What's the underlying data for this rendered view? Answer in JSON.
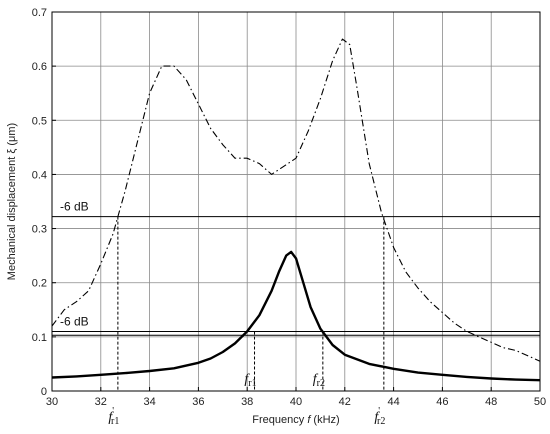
{
  "chart_data": {
    "type": "line",
    "title": "",
    "xlabel_parts": [
      "Frequency ",
      "f",
      " (kHz)"
    ],
    "ylabel": "Mechanical displacement ξ (μm)",
    "xlim": [
      30,
      50
    ],
    "ylim": [
      0,
      0.7
    ],
    "xticks": [
      30,
      32,
      34,
      36,
      38,
      40,
      42,
      44,
      46,
      48,
      50
    ],
    "yticks": [
      0,
      0.1,
      0.2,
      0.3,
      0.4,
      0.5,
      0.6,
      0.7
    ],
    "ytick_labels": [
      "0",
      "0.1",
      "0.2",
      "0.3",
      "0.4",
      "0.5",
      "0.6",
      "0.7"
    ],
    "grid": true,
    "series": [
      {
        "style": "dash-dot",
        "x": [
          30,
          30.5,
          31,
          31.5,
          32,
          32.5,
          33,
          33.5,
          34,
          34.5,
          35,
          35.5,
          36,
          36.5,
          37,
          37.5,
          38,
          38.5,
          39,
          39.5,
          40,
          40.5,
          41,
          41.5,
          41.9,
          42.2,
          42.5,
          43,
          43.5,
          44,
          44.5,
          45,
          45.5,
          46,
          46.5,
          47,
          47.5,
          48,
          48.5,
          49,
          49.5,
          50
        ],
        "y": [
          0.12,
          0.15,
          0.165,
          0.185,
          0.235,
          0.29,
          0.37,
          0.46,
          0.55,
          0.6,
          0.6,
          0.575,
          0.53,
          0.485,
          0.455,
          0.43,
          0.43,
          0.42,
          0.4,
          0.415,
          0.43,
          0.48,
          0.54,
          0.61,
          0.65,
          0.64,
          0.56,
          0.42,
          0.33,
          0.265,
          0.22,
          0.19,
          0.165,
          0.145,
          0.125,
          0.11,
          0.1,
          0.09,
          0.08,
          0.075,
          0.065,
          0.055
        ]
      },
      {
        "style": "solid",
        "x": [
          30,
          31,
          32,
          33,
          34,
          35,
          36,
          36.5,
          37,
          37.5,
          38,
          38.5,
          39,
          39.3,
          39.6,
          39.8,
          40,
          40.3,
          40.6,
          41,
          41.5,
          42,
          43,
          44,
          45,
          46,
          47,
          48,
          49,
          50
        ],
        "y": [
          0.025,
          0.027,
          0.03,
          0.033,
          0.037,
          0.042,
          0.052,
          0.06,
          0.072,
          0.088,
          0.11,
          0.14,
          0.185,
          0.22,
          0.25,
          0.257,
          0.245,
          0.2,
          0.155,
          0.115,
          0.085,
          0.067,
          0.05,
          0.041,
          0.034,
          0.03,
          0.026,
          0.023,
          0.021,
          0.02
        ]
      }
    ],
    "hlines": [
      {
        "y": 0.322,
        "label": "-6 dB"
      },
      {
        "y": 0.11,
        "label": "-6 dB"
      },
      {
        "y": 0.103
      }
    ],
    "vlines": [
      {
        "x": 32.7,
        "y_top": 0.322,
        "label_main": "f",
        "label_sub": "r1",
        "label_prime": "'"
      },
      {
        "x": 38.3,
        "y_top": 0.11,
        "label_main": "f",
        "label_sub": "r1",
        "label_prime": ""
      },
      {
        "x": 41.1,
        "y_top": 0.11,
        "label_main": "f",
        "label_sub": "r2",
        "label_prime": ""
      },
      {
        "x": 43.6,
        "y_top": 0.322,
        "label_main": "f",
        "label_sub": "r2",
        "label_prime": "'"
      }
    ]
  }
}
